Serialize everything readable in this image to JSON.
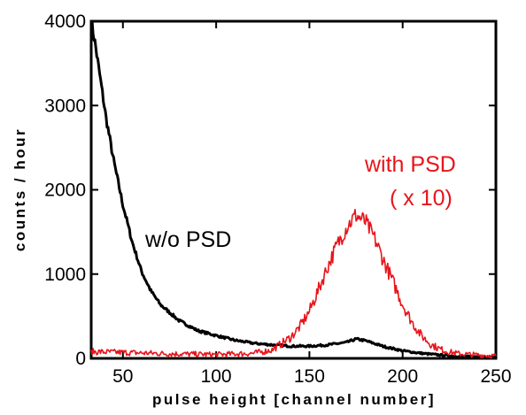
{
  "chart_data": {
    "type": "line",
    "title": "",
    "xlabel": "pulse height [channel number]",
    "ylabel": "counts / hour",
    "xlim": [
      33,
      250
    ],
    "ylim": [
      0,
      4000
    ],
    "x_ticks": [
      50,
      100,
      150,
      200,
      250
    ],
    "x_tick_labels": [
      "50",
      "100",
      "150",
      "200",
      "250"
    ],
    "y_ticks": [
      0,
      1000,
      2000,
      3000,
      4000
    ],
    "y_tick_labels": [
      "0",
      "1000",
      "2000",
      "3000",
      "4000"
    ],
    "grid": false,
    "legend": "none",
    "annotations": [
      {
        "text": "w/o PSD",
        "color": "#000000"
      },
      {
        "text": "with PSD",
        "color": "#e8141b"
      },
      {
        "text": "( x 10)",
        "color": "#e8141b"
      }
    ],
    "series": [
      {
        "color": "#000000",
        "x": [
          33,
          35,
          38,
          41,
          45,
          50,
          55,
          60,
          65,
          70,
          80,
          90,
          100,
          110,
          120,
          130,
          140,
          150,
          160,
          170,
          175,
          180,
          190,
          200,
          210,
          220,
          230,
          240,
          250
        ],
        "y": [
          4000,
          3750,
          3300,
          2850,
          2350,
          1820,
          1380,
          1030,
          800,
          640,
          450,
          330,
          270,
          215,
          180,
          160,
          145,
          145,
          160,
          190,
          230,
          210,
          140,
          90,
          60,
          40,
          25,
          18,
          12
        ]
      },
      {
        "color": "#e8141b",
        "x": [
          33,
          50,
          75,
          100,
          120,
          130,
          140,
          145,
          150,
          155,
          160,
          165,
          170,
          175,
          180,
          185,
          190,
          195,
          200,
          205,
          210,
          215,
          220,
          225,
          230,
          240,
          250
        ],
        "y": [
          80,
          70,
          55,
          45,
          60,
          100,
          250,
          380,
          560,
          820,
          1100,
          1350,
          1560,
          1700,
          1620,
          1420,
          1150,
          900,
          640,
          430,
          270,
          170,
          110,
          75,
          55,
          40,
          30
        ]
      }
    ]
  }
}
